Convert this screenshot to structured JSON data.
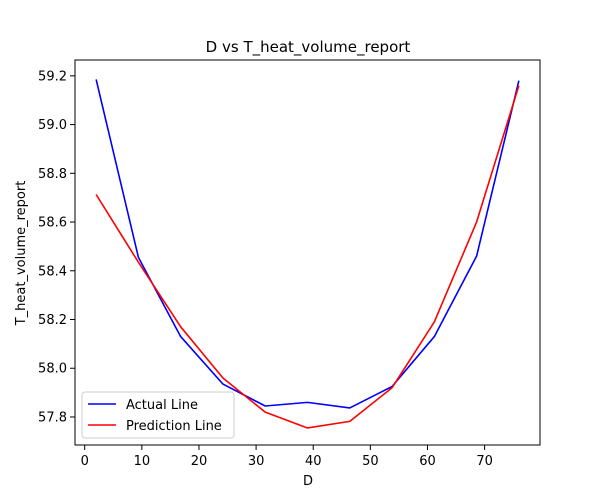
{
  "chart_data": {
    "type": "line",
    "title": "D vs T_heat_volume_report",
    "xlabel": "D",
    "ylabel": "T_heat_volume_report",
    "xlim": [
      -1.7,
      79.7
    ],
    "ylim": [
      57.685,
      59.265
    ],
    "xticks": [
      0,
      10,
      20,
      30,
      40,
      50,
      60,
      70
    ],
    "yticks": [
      57.8,
      58.0,
      58.2,
      58.4,
      58.6,
      58.8,
      59.0,
      59.2
    ],
    "ytick_labels": [
      "57.8",
      "58.0",
      "58.2",
      "58.4",
      "58.6",
      "58.8",
      "59.0",
      "59.2"
    ],
    "grid": false,
    "legend_position": "lower-left",
    "series": [
      {
        "name": "Actual Line",
        "color": "#0000ff",
        "x": [
          2,
          9.4,
          16.8,
          24.2,
          31.6,
          39,
          46.4,
          53.8,
          61.2,
          68.6,
          76
        ],
        "y": [
          59.185,
          58.455,
          58.13,
          57.935,
          57.845,
          57.86,
          57.837,
          57.925,
          58.13,
          58.46,
          59.18
        ]
      },
      {
        "name": "Prediction Line",
        "color": "#ff0000",
        "x": [
          2,
          9.4,
          16.8,
          24.2,
          31.6,
          39,
          46.4,
          53.8,
          61.2,
          68.6,
          76
        ],
        "y": [
          58.713,
          58.435,
          58.17,
          57.96,
          57.82,
          57.755,
          57.782,
          57.92,
          58.19,
          58.6,
          59.16
        ]
      }
    ]
  }
}
